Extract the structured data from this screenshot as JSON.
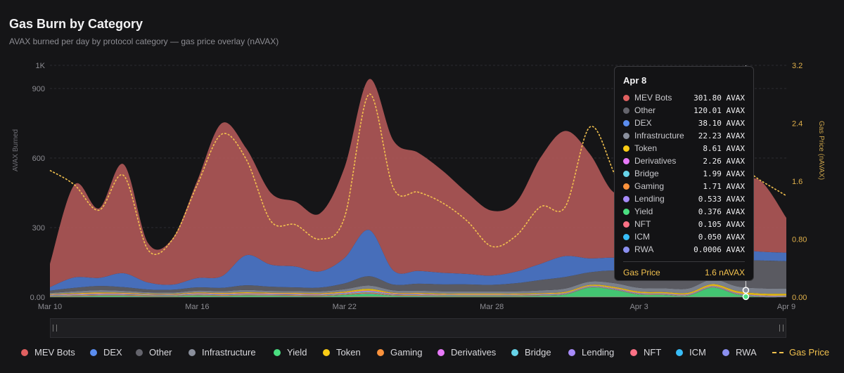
{
  "header": {
    "title": "Gas Burn by Category",
    "subtitle": "AVAX burned per day by protocol category — gas price overlay (nAVAX)"
  },
  "chart_data": {
    "type": "area",
    "stacked": true,
    "title": "Gas Burn by Category",
    "ylabel": "AVAX Burned",
    "y2label": "Gas Price (nAVAX)",
    "ylim": [
      0,
      1000
    ],
    "y2lim": [
      0,
      3.2
    ],
    "yticks": [
      "0.00",
      "300",
      "600",
      "900",
      "1K"
    ],
    "y2ticks": [
      "0.00",
      "0.80",
      "1.6",
      "2.4",
      "3.2"
    ],
    "xticks": [
      "Mar 10",
      "Mar 16",
      "Mar 22",
      "Mar 28",
      "Apr 3",
      "Apr 9"
    ],
    "x": [
      "Mar 10",
      "Mar 11",
      "Mar 12",
      "Mar 13",
      "Mar 14",
      "Mar 15",
      "Mar 16",
      "Mar 17",
      "Mar 18",
      "Mar 19",
      "Mar 20",
      "Mar 21",
      "Mar 22",
      "Mar 23",
      "Mar 24",
      "Mar 25",
      "Mar 26",
      "Mar 27",
      "Mar 28",
      "Mar 29",
      "Mar 30",
      "Mar 31",
      "Apr 1",
      "Apr 2",
      "Apr 3",
      "Apr 4",
      "Apr 5",
      "Apr 6",
      "Apr 7",
      "Apr 8",
      "Apr 9"
    ],
    "series": [
      {
        "name": "RWA",
        "color": "#8b8ff0",
        "values": [
          0,
          0,
          0,
          0,
          0,
          0,
          0,
          0,
          0,
          0,
          0,
          0,
          0,
          0,
          0,
          0,
          0,
          0,
          0,
          0,
          0,
          0,
          0,
          0,
          0,
          0,
          0,
          0,
          0,
          0.0006,
          0
        ]
      },
      {
        "name": "ICM",
        "color": "#38bdf8",
        "values": [
          0.1,
          0.1,
          0.1,
          0.1,
          0.1,
          0.1,
          0.1,
          0.1,
          0.1,
          0.1,
          0.1,
          0.1,
          0.1,
          0.1,
          0.1,
          0.1,
          0.1,
          0.1,
          0.1,
          0.1,
          0.1,
          0.1,
          0.1,
          0.1,
          0.1,
          0.1,
          0.1,
          0.1,
          0.1,
          0.05,
          0.05
        ]
      },
      {
        "name": "NFT",
        "color": "#fb7185",
        "values": [
          1,
          1,
          1,
          1,
          1,
          1,
          1,
          1,
          1,
          1,
          1,
          1,
          1,
          2,
          1,
          1,
          1,
          1,
          1,
          1,
          1,
          1,
          1,
          1,
          1,
          1,
          1,
          1,
          1,
          0.105,
          0.1
        ]
      },
      {
        "name": "Yield",
        "color": "#4ade80",
        "values": [
          2,
          3,
          5,
          5,
          3,
          3,
          6,
          4,
          6,
          5,
          4,
          3,
          8,
          12,
          5,
          4,
          3,
          3,
          3,
          3,
          5,
          10,
          40,
          30,
          10,
          8,
          5,
          40,
          10,
          0.376,
          0.4
        ]
      },
      {
        "name": "Lending",
        "color": "#a78bfa",
        "values": [
          1,
          1,
          1,
          1,
          1,
          1,
          1,
          1,
          1,
          1,
          1,
          1,
          1,
          2,
          1,
          1,
          1,
          1,
          1,
          1,
          1,
          1,
          1,
          1,
          1,
          1,
          1,
          1,
          1,
          0.533,
          0.5
        ]
      },
      {
        "name": "Gaming",
        "color": "#fb923c",
        "values": [
          2,
          3,
          3,
          3,
          3,
          2,
          3,
          3,
          3,
          3,
          3,
          3,
          3,
          4,
          3,
          3,
          2,
          2,
          2,
          2,
          2,
          2,
          2,
          2,
          2,
          2,
          2,
          2,
          2,
          1.71,
          1.7
        ]
      },
      {
        "name": "Bridge",
        "color": "#67d3e8",
        "values": [
          2,
          2,
          2,
          2,
          2,
          2,
          2,
          2,
          2,
          2,
          2,
          2,
          3,
          4,
          2,
          2,
          2,
          2,
          2,
          2,
          2,
          2,
          2,
          2,
          2,
          2,
          2,
          2,
          2,
          1.99,
          2
        ]
      },
      {
        "name": "Derivatives",
        "color": "#e879f9",
        "values": [
          2,
          3,
          3,
          3,
          2,
          2,
          3,
          3,
          3,
          3,
          3,
          3,
          3,
          4,
          3,
          3,
          2,
          2,
          2,
          2,
          2,
          2,
          2,
          2,
          2,
          2,
          2,
          2,
          2,
          2.26,
          2.2
        ]
      },
      {
        "name": "Token",
        "color": "#facc15",
        "values": [
          3,
          4,
          5,
          4,
          3,
          3,
          4,
          4,
          5,
          4,
          4,
          4,
          5,
          8,
          4,
          4,
          4,
          4,
          4,
          4,
          4,
          5,
          5,
          6,
          6,
          6,
          6,
          8,
          8,
          8.61,
          8
        ]
      },
      {
        "name": "Infrastructure",
        "color": "#8a8f9c",
        "values": [
          5,
          8,
          10,
          8,
          6,
          6,
          8,
          8,
          10,
          8,
          8,
          8,
          10,
          14,
          10,
          10,
          10,
          10,
          10,
          10,
          12,
          14,
          14,
          16,
          16,
          16,
          18,
          20,
          20,
          22.23,
          22
        ]
      },
      {
        "name": "Other",
        "color": "#64646c",
        "values": [
          10,
          15,
          18,
          16,
          12,
          12,
          14,
          14,
          20,
          18,
          16,
          16,
          25,
          40,
          25,
          30,
          30,
          30,
          28,
          35,
          45,
          50,
          40,
          55,
          70,
          90,
          100,
          110,
          115,
          120.01,
          118
        ]
      },
      {
        "name": "DEX",
        "color": "#4f7bd1",
        "values": [
          15,
          45,
          35,
          60,
          30,
          22,
          40,
          50,
          130,
          95,
          90,
          70,
          110,
          200,
          60,
          55,
          50,
          45,
          40,
          50,
          70,
          90,
          60,
          55,
          50,
          35,
          35,
          40,
          45,
          38.1,
          37
        ]
      },
      {
        "name": "MEV Bots",
        "color": "#b55a5a",
        "values": [
          100,
          400,
          300,
          470,
          170,
          200,
          420,
          660,
          460,
          310,
          280,
          250,
          390,
          650,
          560,
          510,
          440,
          350,
          280,
          300,
          460,
          540,
          450,
          280,
          340,
          500,
          380,
          520,
          330,
          301.8,
          150
        ]
      }
    ],
    "gas_price": {
      "name": "Gas Price",
      "color": "#f2c14e",
      "values": [
        1.75,
        1.55,
        1.2,
        1.68,
        0.65,
        0.8,
        1.55,
        2.25,
        1.9,
        1.05,
        1.0,
        0.8,
        1.1,
        2.8,
        1.5,
        1.45,
        1.3,
        1.05,
        0.7,
        0.85,
        1.25,
        1.25,
        2.35,
        1.7,
        0.88,
        1.4,
        1.42,
        1.7,
        1.8,
        1.6,
        1.4
      ]
    },
    "tooltip": {
      "date": "Apr 8",
      "rows": [
        {
          "name": "MEV Bots",
          "value": "301.80 AVAX",
          "color": "#e06060"
        },
        {
          "name": "Other",
          "value": "120.01 AVAX",
          "color": "#64646c"
        },
        {
          "name": "DEX",
          "value": "38.10 AVAX",
          "color": "#5b8def"
        },
        {
          "name": "Infrastructure",
          "value": "22.23 AVAX",
          "color": "#8a8f9c"
        },
        {
          "name": "Token",
          "value": "8.61 AVAX",
          "color": "#facc15"
        },
        {
          "name": "Derivatives",
          "value": "2.26 AVAX",
          "color": "#e879f9"
        },
        {
          "name": "Bridge",
          "value": "1.99 AVAX",
          "color": "#67d3e8"
        },
        {
          "name": "Gaming",
          "value": "1.71 AVAX",
          "color": "#fb923c"
        },
        {
          "name": "Lending",
          "value": "0.533 AVAX",
          "color": "#a78bfa"
        },
        {
          "name": "Yield",
          "value": "0.376 AVAX",
          "color": "#4ade80"
        },
        {
          "name": "NFT",
          "value": "0.105 AVAX",
          "color": "#fb7185"
        },
        {
          "name": "ICM",
          "value": "0.050 AVAX",
          "color": "#38bdf8"
        },
        {
          "name": "RWA",
          "value": "0.0006 AVAX",
          "color": "#8b8ff0"
        }
      ],
      "gas_label": "Gas Price",
      "gas_value": "1.6 nAVAX"
    },
    "legend": [
      {
        "name": "MEV Bots",
        "color": "#e06060"
      },
      {
        "name": "DEX",
        "color": "#5b8def"
      },
      {
        "name": "Other",
        "color": "#64646c"
      },
      {
        "name": "Infrastructure",
        "color": "#8a8f9c"
      },
      {
        "name": "Yield",
        "color": "#4ade80"
      },
      {
        "name": "Token",
        "color": "#facc15"
      },
      {
        "name": "Gaming",
        "color": "#fb923c"
      },
      {
        "name": "Derivatives",
        "color": "#e879f9"
      },
      {
        "name": "Bridge",
        "color": "#67d3e8"
      },
      {
        "name": "Lending",
        "color": "#a78bfa"
      },
      {
        "name": "NFT",
        "color": "#fb7185"
      },
      {
        "name": "ICM",
        "color": "#38bdf8"
      },
      {
        "name": "RWA",
        "color": "#8b8ff0"
      },
      {
        "name": "Gas Price",
        "color": "#f2c14e",
        "line": true
      }
    ]
  }
}
